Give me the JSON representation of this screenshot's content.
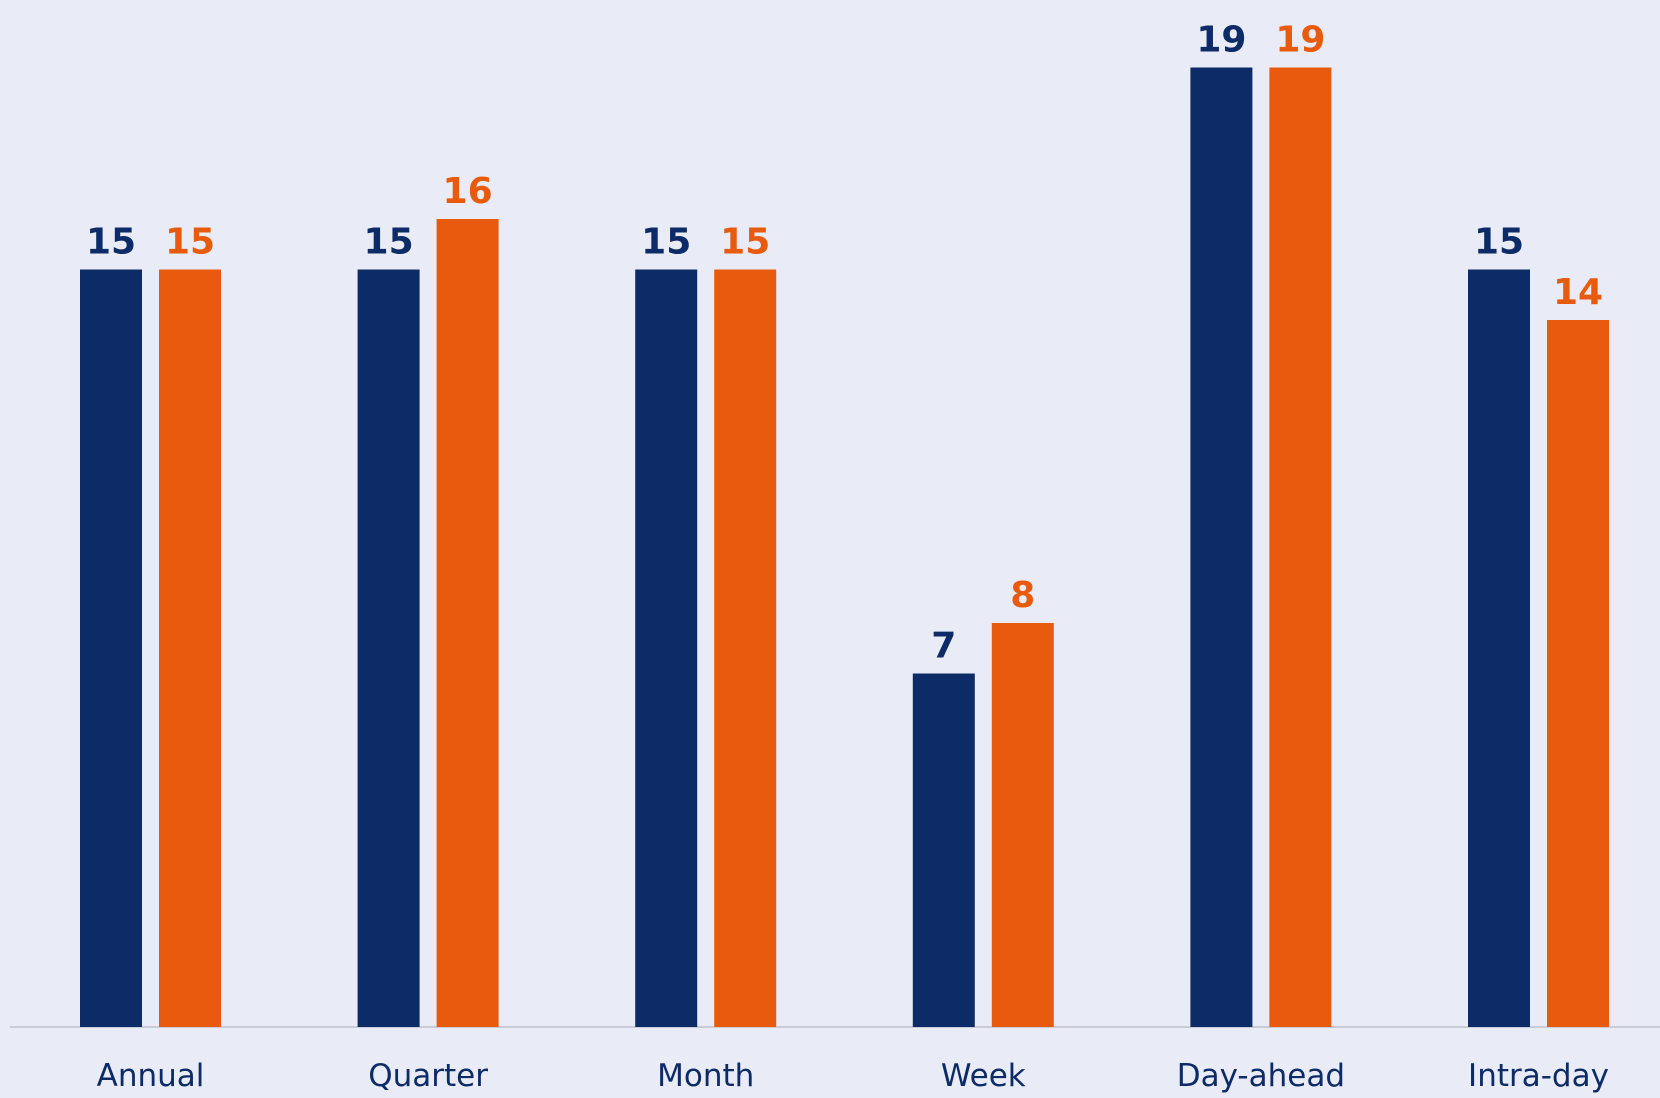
{
  "chart_data": {
    "type": "bar",
    "categories": [
      "Annual",
      "Quarter",
      "Month",
      "Week",
      "Day-ahead",
      "Intra-day"
    ],
    "series": [
      {
        "values": [
          15,
          15,
          15,
          7,
          19,
          15
        ],
        "color": "#0d2b66"
      },
      {
        "values": [
          15,
          16,
          15,
          8,
          19,
          14
        ],
        "color": "#e85b0e"
      }
    ],
    "ylim": [
      0,
      20
    ],
    "grid": false,
    "show_data_labels": true
  },
  "colors": {
    "background": "#e9ecf6",
    "axis": "#c9ccd6",
    "category_text": "#0d2b66"
  }
}
